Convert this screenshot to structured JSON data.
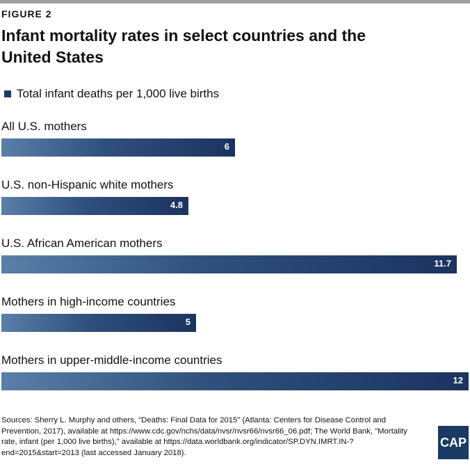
{
  "figure_label": "FIGURE 2",
  "title": "Infant mortality rates in select countries and the United States",
  "legend": {
    "label": "Total infant deaths per 1,000 live births",
    "color": "#1f3a66"
  },
  "chart_data": {
    "type": "bar",
    "orientation": "horizontal",
    "categories": [
      "All U.S. mothers",
      "U.S. non-Hispanic white mothers",
      "U.S. African American mothers",
      "Mothers in high-income countries",
      "Mothers in upper-middle-income countries"
    ],
    "series": [
      {
        "name": "Total infant deaths per 1,000 live births",
        "values": [
          6,
          4.8,
          11.7,
          5,
          12
        ]
      }
    ],
    "value_labels": [
      "6",
      "4.8",
      "11.7",
      "5",
      "12"
    ],
    "xlim": [
      0,
      12
    ],
    "grid": false,
    "legend_position": "top-left"
  },
  "sources": "Sources: Sherry L. Murphy and others,  \"Deaths: Final Data for 2015\" (Atlanta: Centers for Disease Control and Prevention, 2017), available at https://www.cdc.gov/nchs/data/nvsr/nvsr66/nvsr66_06.pdf; The World Bank, \"Mortality rate, infant (per 1,000 live births),\" available at https://data.worldbank.org/indicator/SP.DYN.IMRT.IN-?end=2015&start=2013 (last accessed January 2018).",
  "logo": {
    "text": "CAP"
  }
}
